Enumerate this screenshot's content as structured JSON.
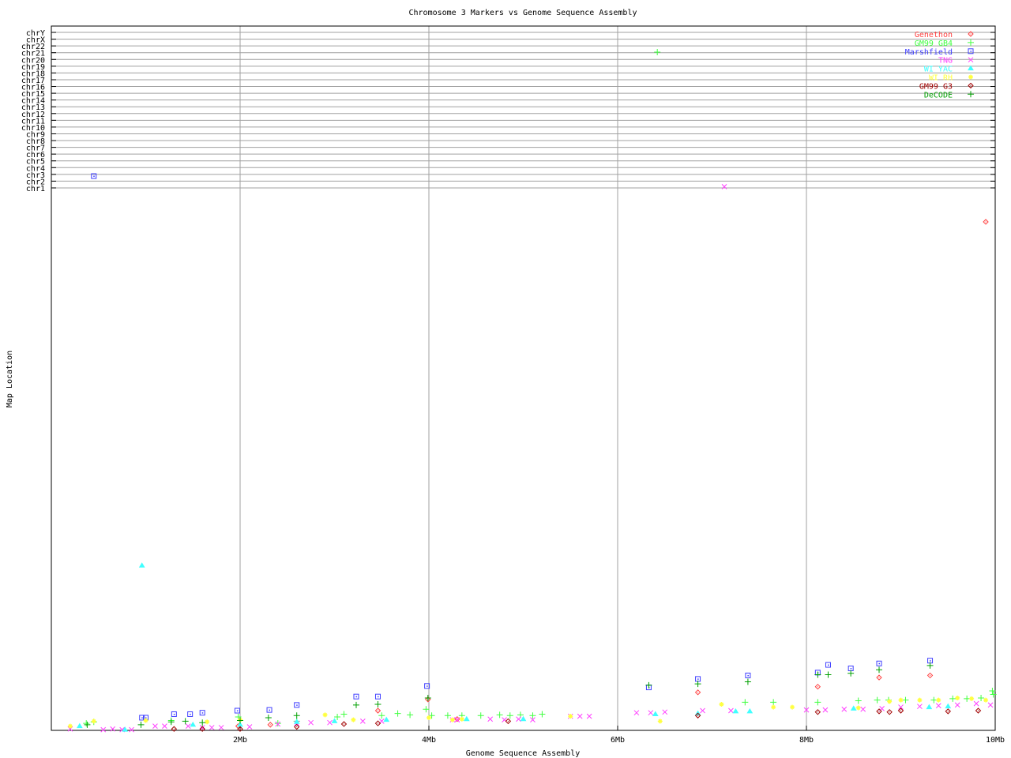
{
  "chart_data": {
    "type": "scatter",
    "title": "Chromosome 3 Markers vs Genome Sequence Assembly",
    "xlabel": "Genome Sequence Assembly",
    "ylabel": "Map Location",
    "xlim": [
      0,
      10
    ],
    "ylim": [
      0,
      100
    ],
    "x_ticks": [
      {
        "value": 2,
        "label": "2Mb"
      },
      {
        "value": 4,
        "label": "4Mb"
      },
      {
        "value": 6,
        "label": "6Mb"
      },
      {
        "value": 8,
        "label": "8Mb"
      },
      {
        "value": 10,
        "label": "10Mb"
      }
    ],
    "y_ticks": [
      {
        "value": 99.1,
        "label": "chrY"
      },
      {
        "value": 98.14,
        "label": "chrX"
      },
      {
        "value": 97.18,
        "label": "chr22"
      },
      {
        "value": 96.22,
        "label": "chr21"
      },
      {
        "value": 95.26,
        "label": "chr20"
      },
      {
        "value": 94.3,
        "label": "chr19"
      },
      {
        "value": 93.34,
        "label": "chr18"
      },
      {
        "value": 92.38,
        "label": "chr17"
      },
      {
        "value": 91.42,
        "label": "chr16"
      },
      {
        "value": 90.46,
        "label": "chr15"
      },
      {
        "value": 89.5,
        "label": "chr14"
      },
      {
        "value": 88.54,
        "label": "chr13"
      },
      {
        "value": 87.58,
        "label": "chr12"
      },
      {
        "value": 86.62,
        "label": "chr11"
      },
      {
        "value": 85.66,
        "label": "chr10"
      },
      {
        "value": 84.7,
        "label": "chr9"
      },
      {
        "value": 83.74,
        "label": "chr8"
      },
      {
        "value": 82.78,
        "label": "chr7"
      },
      {
        "value": 81.82,
        "label": "chr6"
      },
      {
        "value": 80.86,
        "label": "chr5"
      },
      {
        "value": 79.9,
        "label": "chr4"
      },
      {
        "value": 78.94,
        "label": "chr3"
      },
      {
        "value": 77.98,
        "label": "chr2"
      },
      {
        "value": 77.02,
        "label": "chr1"
      }
    ],
    "grid": "vertical at x ticks, horizontal at y ticks",
    "legend_placement": "top-right",
    "series": [
      {
        "name": "Genethon",
        "color": "#ff4040",
        "marker": "diamond",
        "points": [
          [
            3.99,
            4.4
          ],
          [
            3.46,
            2.8
          ],
          [
            2.32,
            0.8
          ],
          [
            1.98,
            0.6
          ],
          [
            4.3,
            1.6
          ],
          [
            6.85,
            5.4
          ],
          [
            8.12,
            6.2
          ],
          [
            8.77,
            7.5
          ],
          [
            9.31,
            7.8
          ],
          [
            9.9,
            72.2
          ]
        ]
      },
      {
        "name": "GM99 GB4",
        "color": "#40ff40",
        "marker": "plus",
        "points": [
          [
            6.42,
            96.3
          ],
          [
            0.37,
            1.0
          ],
          [
            0.45,
            1.2
          ],
          [
            1.27,
            1.4
          ],
          [
            1.98,
            1.9
          ],
          [
            2.4,
            1.0
          ],
          [
            2.6,
            1.3
          ],
          [
            3.03,
            1.9
          ],
          [
            3.1,
            2.3
          ],
          [
            3.5,
            2.1
          ],
          [
            3.67,
            2.4
          ],
          [
            3.8,
            2.2
          ],
          [
            3.97,
            3.0
          ],
          [
            4.03,
            2.1
          ],
          [
            4.2,
            2.1
          ],
          [
            4.35,
            2.1
          ],
          [
            4.55,
            2.1
          ],
          [
            4.75,
            2.2
          ],
          [
            4.86,
            2.1
          ],
          [
            4.97,
            2.2
          ],
          [
            5.1,
            2.1
          ],
          [
            5.2,
            2.3
          ],
          [
            7.35,
            4.0
          ],
          [
            7.65,
            4.0
          ],
          [
            8.12,
            4.0
          ],
          [
            8.55,
            4.2
          ],
          [
            8.75,
            4.3
          ],
          [
            8.87,
            4.3
          ],
          [
            9.05,
            4.3
          ],
          [
            9.35,
            4.3
          ],
          [
            9.55,
            4.5
          ],
          [
            9.7,
            4.5
          ],
          [
            9.85,
            4.6
          ],
          [
            9.97,
            5.6
          ],
          [
            9.98,
            5.1
          ]
        ]
      },
      {
        "name": "Marshfield",
        "color": "#4040ff",
        "marker": "square-dot",
        "points": [
          [
            0.45,
            78.7
          ],
          [
            0.96,
            1.8
          ],
          [
            1.0,
            1.8
          ],
          [
            1.3,
            2.3
          ],
          [
            1.47,
            2.3
          ],
          [
            1.6,
            2.5
          ],
          [
            1.97,
            2.8
          ],
          [
            2.31,
            2.9
          ],
          [
            2.6,
            3.6
          ],
          [
            3.23,
            4.8
          ],
          [
            3.46,
            4.8
          ],
          [
            3.98,
            6.3
          ],
          [
            6.33,
            6.1
          ],
          [
            6.85,
            7.3
          ],
          [
            7.38,
            7.8
          ],
          [
            8.12,
            8.2
          ],
          [
            8.23,
            9.3
          ],
          [
            8.47,
            8.8
          ],
          [
            8.77,
            9.5
          ],
          [
            9.31,
            9.9
          ]
        ]
      },
      {
        "name": "TNG",
        "color": "#ff40ff",
        "marker": "cross",
        "points": [
          [
            7.13,
            77.2
          ],
          [
            0.2,
            0.2
          ],
          [
            0.55,
            0.1
          ],
          [
            0.65,
            0.2
          ],
          [
            0.75,
            0.1
          ],
          [
            0.85,
            0.1
          ],
          [
            1.1,
            0.6
          ],
          [
            1.2,
            0.6
          ],
          [
            1.45,
            0.6
          ],
          [
            1.6,
            0.4
          ],
          [
            1.7,
            0.4
          ],
          [
            1.8,
            0.4
          ],
          [
            2.1,
            0.5
          ],
          [
            2.4,
            0.9
          ],
          [
            2.6,
            1.0
          ],
          [
            2.75,
            1.1
          ],
          [
            2.95,
            1.1
          ],
          [
            3.3,
            1.3
          ],
          [
            3.5,
            1.3
          ],
          [
            4.25,
            1.5
          ],
          [
            4.3,
            1.5
          ],
          [
            4.65,
            1.6
          ],
          [
            4.8,
            1.5
          ],
          [
            4.95,
            1.6
          ],
          [
            5.1,
            1.5
          ],
          [
            5.5,
            2.0
          ],
          [
            5.6,
            2.0
          ],
          [
            5.7,
            2.0
          ],
          [
            6.2,
            2.5
          ],
          [
            6.35,
            2.5
          ],
          [
            6.5,
            2.6
          ],
          [
            6.9,
            2.8
          ],
          [
            7.2,
            2.8
          ],
          [
            8.0,
            2.9
          ],
          [
            8.2,
            2.9
          ],
          [
            8.4,
            3.0
          ],
          [
            8.6,
            3.0
          ],
          [
            8.8,
            3.1
          ],
          [
            9.0,
            3.3
          ],
          [
            9.2,
            3.4
          ],
          [
            9.4,
            3.5
          ],
          [
            9.6,
            3.6
          ],
          [
            9.8,
            3.8
          ],
          [
            9.95,
            3.6
          ]
        ]
      },
      {
        "name": "WI YAC",
        "color": "#40ffff",
        "marker": "triangle",
        "points": [
          [
            0.96,
            23.4
          ],
          [
            0.78,
            0.1
          ],
          [
            0.3,
            0.6
          ],
          [
            1.5,
            0.8
          ],
          [
            2.0,
            0.8
          ],
          [
            2.6,
            1.2
          ],
          [
            3.0,
            1.3
          ],
          [
            3.55,
            1.5
          ],
          [
            4.4,
            1.6
          ],
          [
            5.0,
            1.6
          ],
          [
            6.4,
            2.3
          ],
          [
            6.85,
            2.4
          ],
          [
            7.25,
            2.7
          ],
          [
            7.4,
            2.7
          ],
          [
            8.5,
            3.1
          ],
          [
            9.3,
            3.3
          ],
          [
            9.5,
            3.4
          ]
        ]
      },
      {
        "name": "WI RH",
        "color": "#ffff40",
        "marker": "star",
        "points": [
          [
            0.2,
            0.6
          ],
          [
            0.45,
            1.3
          ],
          [
            1.0,
            1.4
          ],
          [
            1.65,
            1.2
          ],
          [
            2.0,
            1.5
          ],
          [
            2.9,
            2.2
          ],
          [
            3.2,
            1.5
          ],
          [
            4.0,
            1.8
          ],
          [
            4.25,
            1.5
          ],
          [
            4.35,
            1.6
          ],
          [
            5.5,
            2.0
          ],
          [
            6.45,
            1.3
          ],
          [
            7.1,
            3.7
          ],
          [
            7.65,
            3.3
          ],
          [
            7.85,
            3.3
          ],
          [
            8.55,
            3.2
          ],
          [
            8.88,
            4.1
          ],
          [
            9.0,
            4.3
          ],
          [
            9.2,
            4.3
          ],
          [
            9.4,
            4.3
          ],
          [
            9.6,
            4.6
          ],
          [
            9.75,
            4.5
          ],
          [
            9.9,
            4.3
          ]
        ]
      },
      {
        "name": "GM99 G3",
        "color": "#a00000",
        "marker": "diamond",
        "points": [
          [
            1.3,
            0.2
          ],
          [
            1.6,
            0.2
          ],
          [
            2.0,
            0.2
          ],
          [
            2.6,
            0.5
          ],
          [
            3.1,
            0.9
          ],
          [
            3.46,
            1.0
          ],
          [
            4.84,
            1.3
          ],
          [
            6.85,
            2.1
          ],
          [
            8.12,
            2.6
          ],
          [
            8.77,
            2.7
          ],
          [
            8.88,
            2.6
          ],
          [
            9.0,
            2.8
          ],
          [
            9.5,
            2.7
          ],
          [
            9.82,
            2.8
          ]
        ]
      },
      {
        "name": "DeCODE",
        "color": "#00a000",
        "marker": "plus",
        "points": [
          [
            0.38,
            0.8
          ],
          [
            0.95,
            0.8
          ],
          [
            1.27,
            1.2
          ],
          [
            1.42,
            1.3
          ],
          [
            1.6,
            1.1
          ],
          [
            2.0,
            1.4
          ],
          [
            2.3,
            1.8
          ],
          [
            2.6,
            2.1
          ],
          [
            3.23,
            3.6
          ],
          [
            3.46,
            3.7
          ],
          [
            3.99,
            4.6
          ],
          [
            6.33,
            6.4
          ],
          [
            6.85,
            6.6
          ],
          [
            7.38,
            6.9
          ],
          [
            8.12,
            7.9
          ],
          [
            8.23,
            7.9
          ],
          [
            8.47,
            8.1
          ],
          [
            8.77,
            8.6
          ],
          [
            9.31,
            9.2
          ]
        ]
      }
    ]
  }
}
